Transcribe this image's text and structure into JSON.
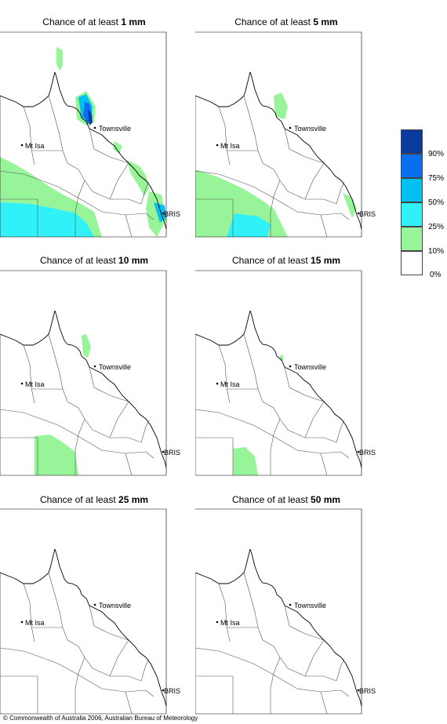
{
  "panels": [
    {
      "prefix": "Chance of at least ",
      "amount": "1 mm"
    },
    {
      "prefix": "Chance of at least ",
      "amount": "5 mm"
    },
    {
      "prefix": "Chance of at least ",
      "amount": "10 mm"
    },
    {
      "prefix": "Chance of at least ",
      "amount": "15 mm"
    },
    {
      "prefix": "Chance of at least ",
      "amount": "25 mm"
    },
    {
      "prefix": "Chance of at least ",
      "amount": "50 mm"
    }
  ],
  "places": {
    "townsville": "Townsville",
    "mt_isa": "Mt Isa",
    "brisbane": "BRIS"
  },
  "legend": {
    "labels": [
      "90%",
      "75%",
      "50%",
      "25%",
      "10%",
      "0%"
    ],
    "colors": [
      "#0a3a9c",
      "#0a6ef0",
      "#00c0f0",
      "#30f0f8",
      "#98f498",
      "#ffffff"
    ]
  },
  "copyright": "© Commonwealth of Australia 2006, Australian Bureau of Meteorology"
}
